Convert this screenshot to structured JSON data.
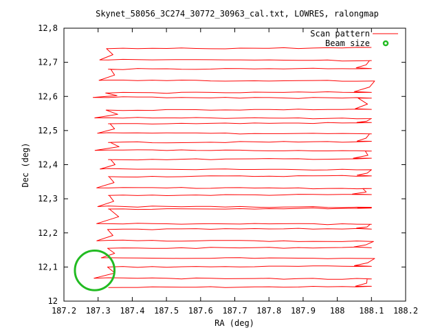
{
  "chart_data": {
    "type": "line",
    "title": "Skynet_58056_3C274_30772_30963_cal.txt, LOWRES, ralongmap",
    "xlabel": "RA (deg)",
    "ylabel": "Dec (deg)",
    "xlim": [
      187.2,
      188.2
    ],
    "ylim": [
      12.0,
      12.8
    ],
    "xticks": [
      187.2,
      187.3,
      187.4,
      187.5,
      187.6,
      187.7,
      187.8,
      187.9,
      188.0,
      188.1,
      188.2
    ],
    "xtick_labels": [
      "187.2",
      "187.3",
      "187.4",
      "187.5",
      "187.6",
      "187.7",
      "187.8",
      "187.9",
      "188",
      "188.1",
      "188.2"
    ],
    "yticks": [
      12.0,
      12.1,
      12.2,
      12.3,
      12.4,
      12.5,
      12.6,
      12.7,
      12.8
    ],
    "ytick_labels": [
      "12",
      "12,1",
      "12,2",
      "12,3",
      "12,4",
      "12,5",
      "12,6",
      "12,7",
      "12,8"
    ],
    "grid": false,
    "legend_position": "top-right",
    "series": [
      {
        "name": "Scan pattern",
        "color": "#ff0000",
        "style": "line",
        "scan_rows_dec": [
          12.04,
          12.065,
          12.1,
          12.125,
          12.155,
          12.175,
          12.21,
          12.225,
          12.27,
          12.275,
          12.31,
          12.33,
          12.365,
          12.385,
          12.415,
          12.44,
          12.465,
          12.49,
          12.52,
          12.535,
          12.56,
          12.595,
          12.61,
          12.645,
          12.68,
          12.705,
          12.74
        ],
        "ra_left_end": 187.33,
        "ra_right_end": 188.1
      },
      {
        "name": "Beam size",
        "color": "#22bb22",
        "style": "circle",
        "center": [
          187.29,
          12.09
        ],
        "radius_deg": 0.058
      }
    ]
  }
}
